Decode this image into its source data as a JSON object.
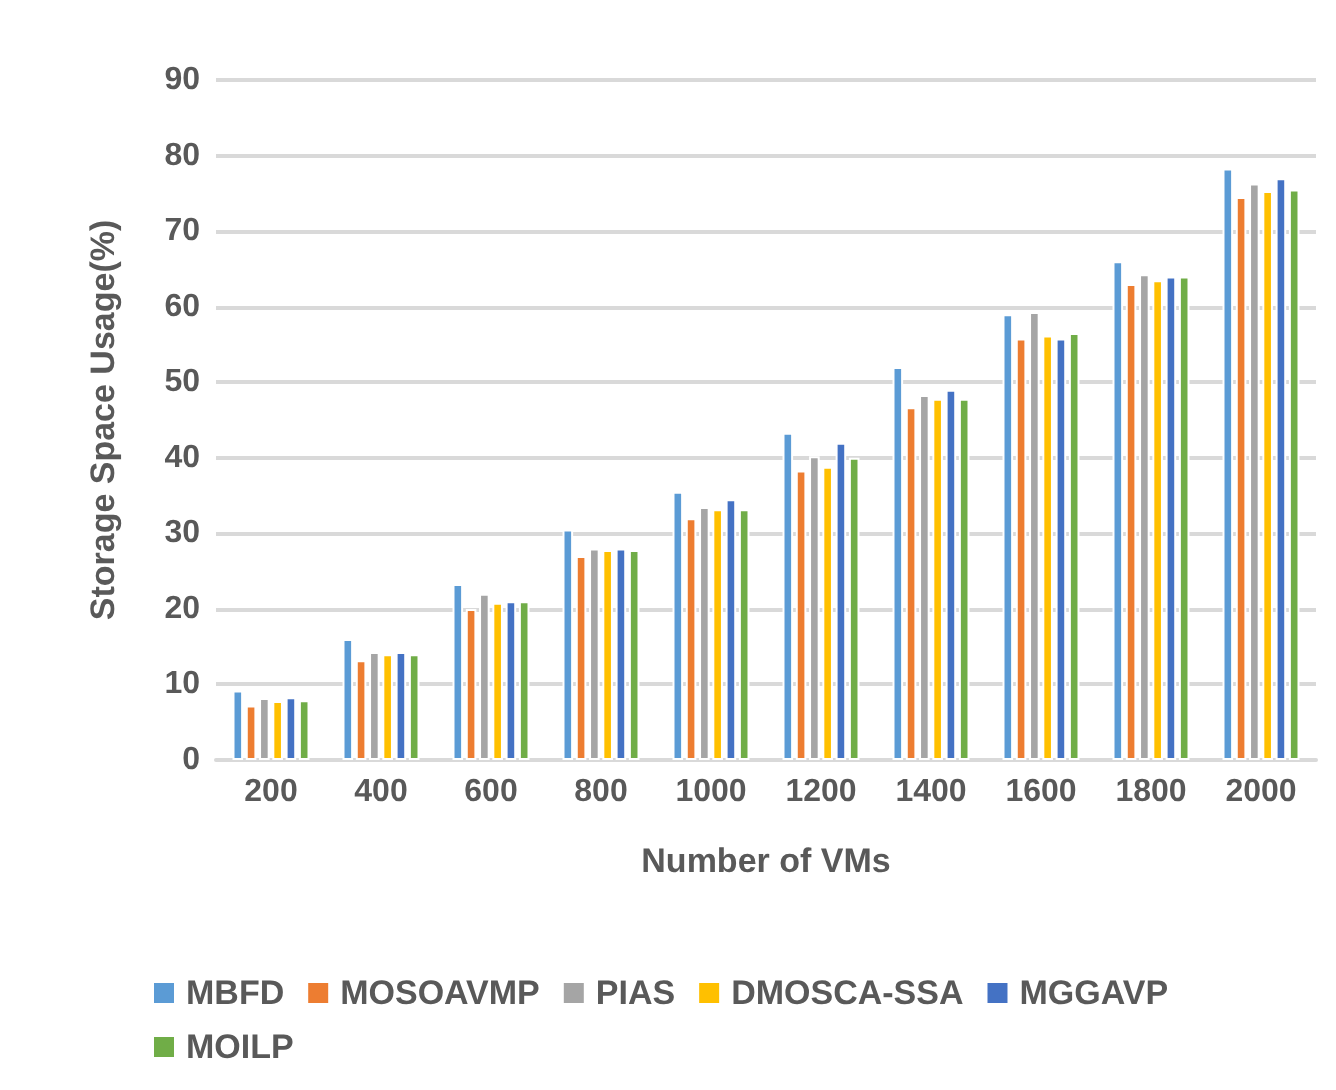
{
  "chart_data": {
    "type": "bar",
    "xlabel": "Number of VMs",
    "ylabel": "Storage Space Usage(%)",
    "categories": [
      "200",
      "400",
      "600",
      "800",
      "1000",
      "1200",
      "1400",
      "1600",
      "1800",
      "2000"
    ],
    "series": [
      {
        "name": "MBFD",
        "color": "#5b9bd5",
        "values": [
          9.2,
          16,
          23.3,
          30.5,
          35.5,
          43.3,
          52,
          59,
          66,
          78.3
        ]
      },
      {
        "name": "MOSOAVMP",
        "color": "#ed7d31",
        "values": [
          7.2,
          13.2,
          20,
          27,
          32,
          38.3,
          46.7,
          55.8,
          63,
          74.5
        ]
      },
      {
        "name": "PIAS",
        "color": "#a5a5a5",
        "values": [
          8.2,
          14.3,
          22,
          28,
          33.5,
          40.2,
          48.3,
          59.3,
          64.3,
          76.3
        ]
      },
      {
        "name": "DMOSCA-SSA",
        "color": "#ffc000",
        "values": [
          7.8,
          14,
          20.8,
          27.8,
          33.2,
          38.8,
          47.8,
          56.2,
          63.5,
          75.3
        ]
      },
      {
        "name": "MGGAVP",
        "color": "#4472c4",
        "values": [
          8.3,
          14.3,
          21,
          28,
          34.5,
          42,
          49,
          55.8,
          64,
          77
        ]
      },
      {
        "name": "MOILP",
        "color": "#70ad47",
        "values": [
          7.9,
          14,
          21,
          27.8,
          33.2,
          40,
          47.8,
          56.5,
          64,
          75.5
        ]
      }
    ],
    "ylim": [
      0,
      90
    ],
    "yticks": [
      0,
      10,
      20,
      30,
      40,
      50,
      60,
      70,
      80,
      90
    ],
    "grid": "y",
    "legend": "bottom"
  }
}
